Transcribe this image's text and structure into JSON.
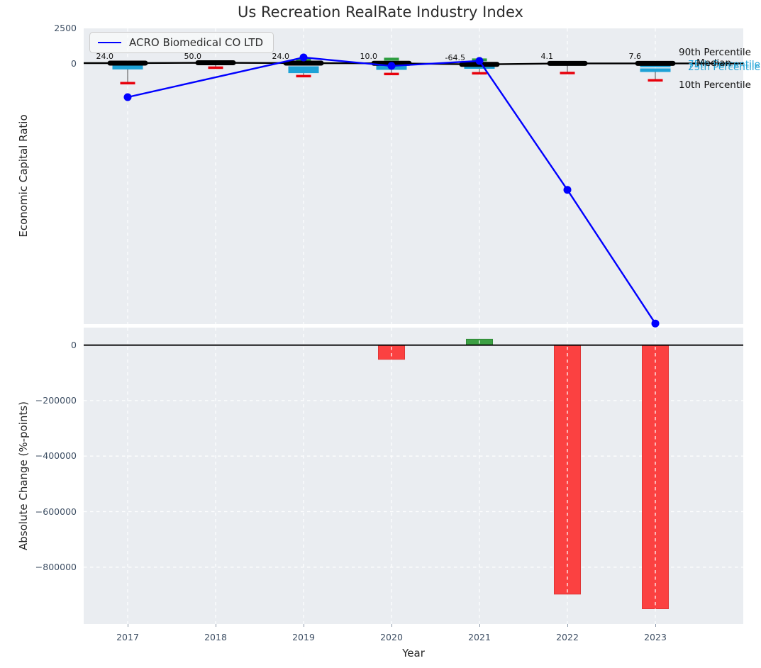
{
  "title": "Us Recreation RealRate Industry Index",
  "legend": {
    "series_label": "ACRO Biomedical CO LTD"
  },
  "annotations": {
    "p90": "90th Percentile",
    "median": "Median",
    "p75": "75th Percentile",
    "p25": "25th Percentile",
    "p10": "10th Percentile"
  },
  "colors": {
    "company_line": "#0000ff",
    "median": "#000000",
    "percentile_band": "#1ea2d6",
    "p90_marker": "#2f9e41",
    "p10_marker": "#e8000b",
    "bar_negative": "#fb4141",
    "bar_positive": "#3da044",
    "plot_background": "#eaedf1",
    "grid": "#ffffff",
    "tick_label": "#3d4e63",
    "whisker": "#666666"
  },
  "chart_data": [
    {
      "type": "line",
      "title": "Us Recreation RealRate Industry Index",
      "ylabel": "Economic Capital Ratio",
      "x": [
        2017,
        2018,
        2019,
        2020,
        2021,
        2022,
        2023
      ],
      "xlim": [
        2016.5,
        2024.0
      ],
      "ylim": [
        -18560,
        2500
      ],
      "yticks": {
        "values": [
          2500,
          0
        ],
        "labels": [
          "2500",
          "0"
        ]
      },
      "grid": "vertical-dashed",
      "legend_position": "upper-left",
      "series": [
        {
          "name": "ACRO Biomedical CO LTD",
          "type": "line-markers",
          "color": "#0000ff",
          "values": [
            -2400,
            null,
            430,
            -170,
            180,
            -9000,
            -18520
          ]
        },
        {
          "name": "Median",
          "type": "line-thick-markers",
          "color": "#000000",
          "values": [
            24.0,
            50.0,
            24.0,
            10.0,
            -64.5,
            4.1,
            7.6
          ],
          "point_labels": [
            "24.0",
            "50.0",
            "24.0",
            "10.0",
            "-64.5",
            "4.1",
            "7.6"
          ]
        },
        {
          "name": "90th Percentile",
          "type": "tick-markers",
          "color": "#2f9e41",
          "values": [
            null,
            null,
            260,
            310,
            260,
            null,
            null
          ]
        },
        {
          "name": "75th Percentile",
          "type": "tick-markers",
          "color": "#1ea2d6",
          "values": [
            -150,
            null,
            -330,
            -130,
            -50,
            null,
            -140
          ]
        },
        {
          "name": "25th Percentile",
          "type": "tick-markers",
          "color": "#1ea2d6",
          "values": [
            -300,
            null,
            -560,
            -330,
            -250,
            null,
            -480
          ]
        },
        {
          "name": "10th Percentile",
          "type": "tick-markers",
          "color": "#e8000b",
          "values": [
            -1400,
            -300,
            -900,
            -750,
            -700,
            -680,
            -1200
          ]
        }
      ]
    },
    {
      "type": "bar",
      "ylabel": "Absolute Change (%-points)",
      "xlabel": "Year",
      "categories": [
        2017,
        2018,
        2019,
        2020,
        2021,
        2022,
        2023
      ],
      "values": [
        null,
        null,
        null,
        -51000,
        21000,
        -897000,
        -950000
      ],
      "ylim": [
        -1005000,
        63000
      ],
      "yticks": {
        "values": [
          0,
          -200000,
          -400000,
          -600000,
          -800000
        ],
        "labels": [
          "0",
          "−200000",
          "−400000",
          "−600000",
          "−800000"
        ]
      },
      "zero_line": true,
      "grid": "dashed"
    }
  ]
}
